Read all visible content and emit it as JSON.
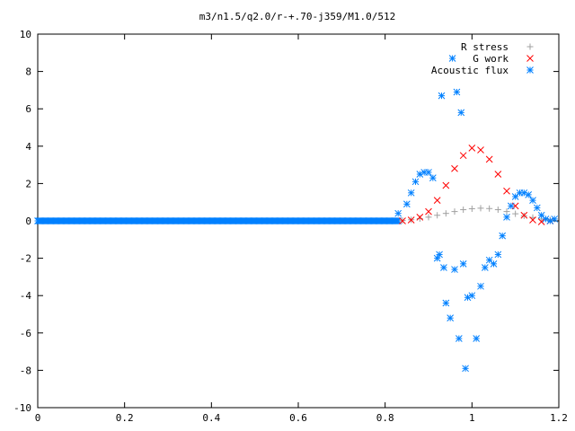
{
  "chart_data": {
    "type": "scatter",
    "title": "m3/n1.5/q2.0/r-+.70-j359/M1.0/512",
    "xlabel": "",
    "ylabel": "",
    "xlim": [
      0,
      1.2
    ],
    "ylim": [
      -10,
      10
    ],
    "x_ticks": [
      "0",
      "0.2",
      "0.4",
      "0.6",
      "0.8",
      "1",
      "1.2"
    ],
    "y_ticks": [
      "-10",
      "-8",
      "-6",
      "-4",
      "-2",
      "0",
      "2",
      "4",
      "6",
      "8",
      "10"
    ],
    "grid": false,
    "legend_position": "top-right",
    "series": [
      {
        "name": "R stress",
        "marker": "+",
        "color": "#a0a0a0",
        "x": [
          0.84,
          0.86,
          0.88,
          0.9,
          0.92,
          0.94,
          0.96,
          0.98,
          1.0,
          1.02,
          1.04,
          1.06,
          1.08,
          1.1,
          1.12,
          1.14,
          1.16,
          1.18
        ],
        "y": [
          0.02,
          0.06,
          0.12,
          0.2,
          0.3,
          0.4,
          0.5,
          0.6,
          0.65,
          0.68,
          0.66,
          0.6,
          0.5,
          0.38,
          0.27,
          0.18,
          0.1,
          0.05
        ]
      },
      {
        "name": "G work",
        "marker": "x",
        "color": "#ff0000",
        "x": [
          0.84,
          0.86,
          0.88,
          0.9,
          0.92,
          0.94,
          0.96,
          0.98,
          1.0,
          1.02,
          1.04,
          1.06,
          1.08,
          1.1,
          1.12,
          1.14,
          1.16,
          1.18
        ],
        "y": [
          0.0,
          0.05,
          0.2,
          0.5,
          1.1,
          1.9,
          2.8,
          3.5,
          3.9,
          3.8,
          3.3,
          2.5,
          1.6,
          0.8,
          0.3,
          0.05,
          -0.05,
          0.0
        ]
      },
      {
        "name": "Acoustic flux",
        "marker": "*",
        "color": "#0080ff",
        "x": [
          0.83,
          0.85,
          0.86,
          0.87,
          0.88,
          0.89,
          0.9,
          0.91,
          0.92,
          0.925,
          0.93,
          0.935,
          0.94,
          0.95,
          0.955,
          0.96,
          0.965,
          0.97,
          0.975,
          0.98,
          0.985,
          0.99,
          1.0,
          1.01,
          1.02,
          1.03,
          1.04,
          1.05,
          1.06,
          1.07,
          1.08,
          1.09,
          1.1,
          1.11,
          1.12,
          1.13,
          1.14,
          1.15,
          1.16,
          1.17,
          1.18,
          1.19
        ],
        "y": [
          0.4,
          0.9,
          1.5,
          2.1,
          2.5,
          2.6,
          2.6,
          2.3,
          -2.0,
          -1.8,
          6.7,
          -2.5,
          -4.4,
          -5.2,
          8.7,
          -2.6,
          6.9,
          -6.3,
          5.8,
          -2.3,
          -7.9,
          -4.1,
          -4.0,
          -6.3,
          -3.5,
          -2.5,
          -2.1,
          -2.3,
          -1.8,
          -0.8,
          0.2,
          0.8,
          1.3,
          1.5,
          1.5,
          1.4,
          1.1,
          0.7,
          0.3,
          0.1,
          0.0,
          0.1
        ]
      }
    ]
  }
}
